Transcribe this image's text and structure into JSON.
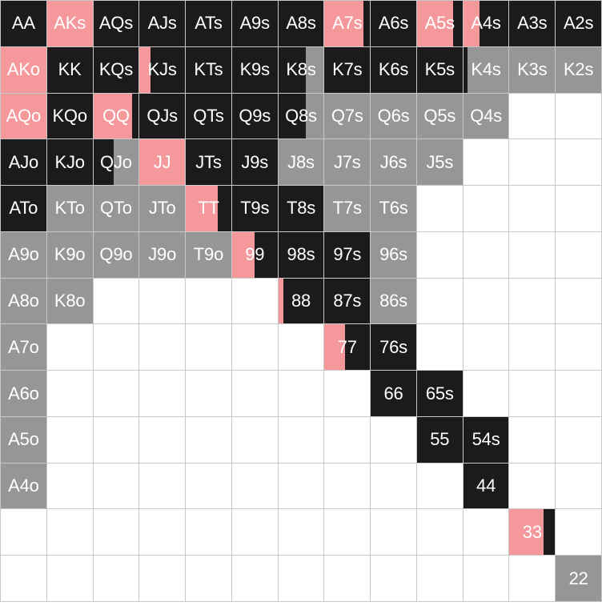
{
  "colors": {
    "raise": "#f4989c",
    "call": "#1c1a1b",
    "fold": "#969696",
    "empty": "#ffffff"
  },
  "grid": [
    [
      {
        "h": "AA",
        "m": [
          [
            "call",
            100
          ]
        ]
      },
      {
        "h": "AKs",
        "m": [
          [
            "raise",
            100
          ]
        ]
      },
      {
        "h": "AQs",
        "m": [
          [
            "call",
            100
          ]
        ]
      },
      {
        "h": "AJs",
        "m": [
          [
            "call",
            100
          ]
        ]
      },
      {
        "h": "ATs",
        "m": [
          [
            "call",
            100
          ]
        ]
      },
      {
        "h": "A9s",
        "m": [
          [
            "call",
            100
          ]
        ]
      },
      {
        "h": "A8s",
        "m": [
          [
            "call",
            100
          ]
        ]
      },
      {
        "h": "A7s",
        "m": [
          [
            "raise",
            85
          ],
          [
            "call",
            15
          ]
        ]
      },
      {
        "h": "A6s",
        "m": [
          [
            "call",
            100
          ]
        ]
      },
      {
        "h": "A5s",
        "m": [
          [
            "raise",
            80
          ],
          [
            "call",
            20
          ]
        ]
      },
      {
        "h": "A4s",
        "m": [
          [
            "raise",
            35
          ],
          [
            "call",
            65
          ]
        ]
      },
      {
        "h": "A3s",
        "m": [
          [
            "call",
            100
          ]
        ]
      },
      {
        "h": "A2s",
        "m": [
          [
            "call",
            100
          ]
        ]
      }
    ],
    [
      {
        "h": "AKo",
        "m": [
          [
            "raise",
            100
          ]
        ]
      },
      {
        "h": "KK",
        "m": [
          [
            "call",
            100
          ]
        ]
      },
      {
        "h": "KQs",
        "m": [
          [
            "call",
            100
          ]
        ]
      },
      {
        "h": "KJs",
        "m": [
          [
            "raise",
            25
          ],
          [
            "call",
            75
          ]
        ]
      },
      {
        "h": "KTs",
        "m": [
          [
            "call",
            100
          ]
        ]
      },
      {
        "h": "K9s",
        "m": [
          [
            "call",
            100
          ]
        ]
      },
      {
        "h": "K8s",
        "m": [
          [
            "call",
            60
          ],
          [
            "fold",
            40
          ]
        ]
      },
      {
        "h": "K7s",
        "m": [
          [
            "call",
            100
          ]
        ]
      },
      {
        "h": "K6s",
        "m": [
          [
            "call",
            100
          ]
        ]
      },
      {
        "h": "K5s",
        "m": [
          [
            "call",
            100
          ]
        ]
      },
      {
        "h": "K4s",
        "m": [
          [
            "call",
            10
          ],
          [
            "fold",
            90
          ]
        ]
      },
      {
        "h": "K3s",
        "m": [
          [
            "fold",
            100
          ]
        ]
      },
      {
        "h": "K2s",
        "m": [
          [
            "fold",
            100
          ]
        ]
      }
    ],
    [
      {
        "h": "AQo",
        "m": [
          [
            "raise",
            100
          ]
        ]
      },
      {
        "h": "KQo",
        "m": [
          [
            "call",
            100
          ]
        ]
      },
      {
        "h": "QQ",
        "m": [
          [
            "raise",
            85
          ],
          [
            "call",
            15
          ]
        ]
      },
      {
        "h": "QJs",
        "m": [
          [
            "call",
            100
          ]
        ]
      },
      {
        "h": "QTs",
        "m": [
          [
            "call",
            100
          ]
        ]
      },
      {
        "h": "Q9s",
        "m": [
          [
            "call",
            100
          ]
        ]
      },
      {
        "h": "Q8s",
        "m": [
          [
            "call",
            60
          ],
          [
            "fold",
            40
          ]
        ]
      },
      {
        "h": "Q7s",
        "m": [
          [
            "fold",
            100
          ]
        ]
      },
      {
        "h": "Q6s",
        "m": [
          [
            "fold",
            100
          ]
        ]
      },
      {
        "h": "Q5s",
        "m": [
          [
            "fold",
            100
          ]
        ]
      },
      {
        "h": "Q4s",
        "m": [
          [
            "fold",
            100
          ]
        ]
      },
      {
        "h": "",
        "m": []
      },
      {
        "h": "",
        "m": []
      }
    ],
    [
      {
        "h": "AJo",
        "m": [
          [
            "call",
            100
          ]
        ]
      },
      {
        "h": "KJo",
        "m": [
          [
            "call",
            100
          ]
        ]
      },
      {
        "h": "QJo",
        "m": [
          [
            "call",
            45
          ],
          [
            "fold",
            55
          ]
        ]
      },
      {
        "h": "JJ",
        "m": [
          [
            "raise",
            100
          ]
        ]
      },
      {
        "h": "JTs",
        "m": [
          [
            "call",
            100
          ]
        ]
      },
      {
        "h": "J9s",
        "m": [
          [
            "call",
            100
          ]
        ]
      },
      {
        "h": "J8s",
        "m": [
          [
            "fold",
            100
          ]
        ]
      },
      {
        "h": "J7s",
        "m": [
          [
            "fold",
            100
          ]
        ]
      },
      {
        "h": "J6s",
        "m": [
          [
            "fold",
            100
          ]
        ]
      },
      {
        "h": "J5s",
        "m": [
          [
            "fold",
            100
          ]
        ]
      },
      {
        "h": "",
        "m": []
      },
      {
        "h": "",
        "m": []
      },
      {
        "h": "",
        "m": []
      }
    ],
    [
      {
        "h": "ATo",
        "m": [
          [
            "call",
            100
          ]
        ]
      },
      {
        "h": "KTo",
        "m": [
          [
            "fold",
            100
          ]
        ]
      },
      {
        "h": "QTo",
        "m": [
          [
            "fold",
            100
          ]
        ]
      },
      {
        "h": "JTo",
        "m": [
          [
            "fold",
            100
          ]
        ]
      },
      {
        "h": "TT",
        "m": [
          [
            "raise",
            70
          ],
          [
            "call",
            30
          ]
        ]
      },
      {
        "h": "T9s",
        "m": [
          [
            "call",
            100
          ]
        ]
      },
      {
        "h": "T8s",
        "m": [
          [
            "call",
            100
          ]
        ]
      },
      {
        "h": "T7s",
        "m": [
          [
            "fold",
            100
          ]
        ]
      },
      {
        "h": "T6s",
        "m": [
          [
            "fold",
            100
          ]
        ]
      },
      {
        "h": "",
        "m": []
      },
      {
        "h": "",
        "m": []
      },
      {
        "h": "",
        "m": []
      },
      {
        "h": "",
        "m": []
      }
    ],
    [
      {
        "h": "A9o",
        "m": [
          [
            "fold",
            100
          ]
        ]
      },
      {
        "h": "K9o",
        "m": [
          [
            "fold",
            100
          ]
        ]
      },
      {
        "h": "Q9o",
        "m": [
          [
            "fold",
            100
          ]
        ]
      },
      {
        "h": "J9o",
        "m": [
          [
            "fold",
            100
          ]
        ]
      },
      {
        "h": "T9o",
        "m": [
          [
            "fold",
            100
          ]
        ]
      },
      {
        "h": "99",
        "m": [
          [
            "raise",
            50
          ],
          [
            "call",
            50
          ]
        ]
      },
      {
        "h": "98s",
        "m": [
          [
            "call",
            100
          ]
        ]
      },
      {
        "h": "97s",
        "m": [
          [
            "call",
            100
          ]
        ]
      },
      {
        "h": "96s",
        "m": [
          [
            "fold",
            100
          ]
        ]
      },
      {
        "h": "",
        "m": []
      },
      {
        "h": "",
        "m": []
      },
      {
        "h": "",
        "m": []
      },
      {
        "h": "",
        "m": []
      }
    ],
    [
      {
        "h": "A8o",
        "m": [
          [
            "fold",
            100
          ]
        ]
      },
      {
        "h": "K8o",
        "m": [
          [
            "fold",
            100
          ]
        ]
      },
      {
        "h": "",
        "m": []
      },
      {
        "h": "",
        "m": []
      },
      {
        "h": "",
        "m": []
      },
      {
        "h": "",
        "m": []
      },
      {
        "h": "88",
        "m": [
          [
            "raise",
            12
          ],
          [
            "call",
            88
          ]
        ]
      },
      {
        "h": "87s",
        "m": [
          [
            "call",
            100
          ]
        ]
      },
      {
        "h": "86s",
        "m": [
          [
            "fold",
            100
          ]
        ]
      },
      {
        "h": "",
        "m": []
      },
      {
        "h": "",
        "m": []
      },
      {
        "h": "",
        "m": []
      },
      {
        "h": "",
        "m": []
      }
    ],
    [
      {
        "h": "A7o",
        "m": [
          [
            "fold",
            100
          ]
        ]
      },
      {
        "h": "",
        "m": []
      },
      {
        "h": "",
        "m": []
      },
      {
        "h": "",
        "m": []
      },
      {
        "h": "",
        "m": []
      },
      {
        "h": "",
        "m": []
      },
      {
        "h": "",
        "m": []
      },
      {
        "h": "77",
        "m": [
          [
            "raise",
            45
          ],
          [
            "call",
            55
          ]
        ]
      },
      {
        "h": "76s",
        "m": [
          [
            "call",
            100
          ]
        ]
      },
      {
        "h": "",
        "m": []
      },
      {
        "h": "",
        "m": []
      },
      {
        "h": "",
        "m": []
      },
      {
        "h": "",
        "m": []
      }
    ],
    [
      {
        "h": "A6o",
        "m": [
          [
            "fold",
            100
          ]
        ]
      },
      {
        "h": "",
        "m": []
      },
      {
        "h": "",
        "m": []
      },
      {
        "h": "",
        "m": []
      },
      {
        "h": "",
        "m": []
      },
      {
        "h": "",
        "m": []
      },
      {
        "h": "",
        "m": []
      },
      {
        "h": "",
        "m": []
      },
      {
        "h": "66",
        "m": [
          [
            "call",
            100
          ]
        ]
      },
      {
        "h": "65s",
        "m": [
          [
            "call",
            100
          ]
        ]
      },
      {
        "h": "",
        "m": []
      },
      {
        "h": "",
        "m": []
      },
      {
        "h": "",
        "m": []
      }
    ],
    [
      {
        "h": "A5o",
        "m": [
          [
            "fold",
            100
          ]
        ]
      },
      {
        "h": "",
        "m": []
      },
      {
        "h": "",
        "m": []
      },
      {
        "h": "",
        "m": []
      },
      {
        "h": "",
        "m": []
      },
      {
        "h": "",
        "m": []
      },
      {
        "h": "",
        "m": []
      },
      {
        "h": "",
        "m": []
      },
      {
        "h": "",
        "m": []
      },
      {
        "h": "55",
        "m": [
          [
            "call",
            100
          ]
        ]
      },
      {
        "h": "54s",
        "m": [
          [
            "call",
            100
          ]
        ]
      },
      {
        "h": "",
        "m": []
      },
      {
        "h": "",
        "m": []
      }
    ],
    [
      {
        "h": "A4o",
        "m": [
          [
            "fold",
            100
          ]
        ]
      },
      {
        "h": "",
        "m": []
      },
      {
        "h": "",
        "m": []
      },
      {
        "h": "",
        "m": []
      },
      {
        "h": "",
        "m": []
      },
      {
        "h": "",
        "m": []
      },
      {
        "h": "",
        "m": []
      },
      {
        "h": "",
        "m": []
      },
      {
        "h": "",
        "m": []
      },
      {
        "h": "",
        "m": []
      },
      {
        "h": "44",
        "m": [
          [
            "call",
            100
          ]
        ]
      },
      {
        "h": "",
        "m": []
      },
      {
        "h": "",
        "m": []
      }
    ],
    [
      {
        "h": "",
        "m": []
      },
      {
        "h": "",
        "m": []
      },
      {
        "h": "",
        "m": []
      },
      {
        "h": "",
        "m": []
      },
      {
        "h": "",
        "m": []
      },
      {
        "h": "",
        "m": []
      },
      {
        "h": "",
        "m": []
      },
      {
        "h": "",
        "m": []
      },
      {
        "h": "",
        "m": []
      },
      {
        "h": "",
        "m": []
      },
      {
        "h": "",
        "m": []
      },
      {
        "h": "33",
        "m": [
          [
            "raise",
            75
          ],
          [
            "call",
            25
          ]
        ]
      },
      {
        "h": "",
        "m": []
      }
    ],
    [
      {
        "h": "",
        "m": []
      },
      {
        "h": "",
        "m": []
      },
      {
        "h": "",
        "m": []
      },
      {
        "h": "",
        "m": []
      },
      {
        "h": "",
        "m": []
      },
      {
        "h": "",
        "m": []
      },
      {
        "h": "",
        "m": []
      },
      {
        "h": "",
        "m": []
      },
      {
        "h": "",
        "m": []
      },
      {
        "h": "",
        "m": []
      },
      {
        "h": "",
        "m": []
      },
      {
        "h": "",
        "m": []
      },
      {
        "h": "22",
        "m": [
          [
            "fold",
            100
          ]
        ]
      }
    ]
  ]
}
